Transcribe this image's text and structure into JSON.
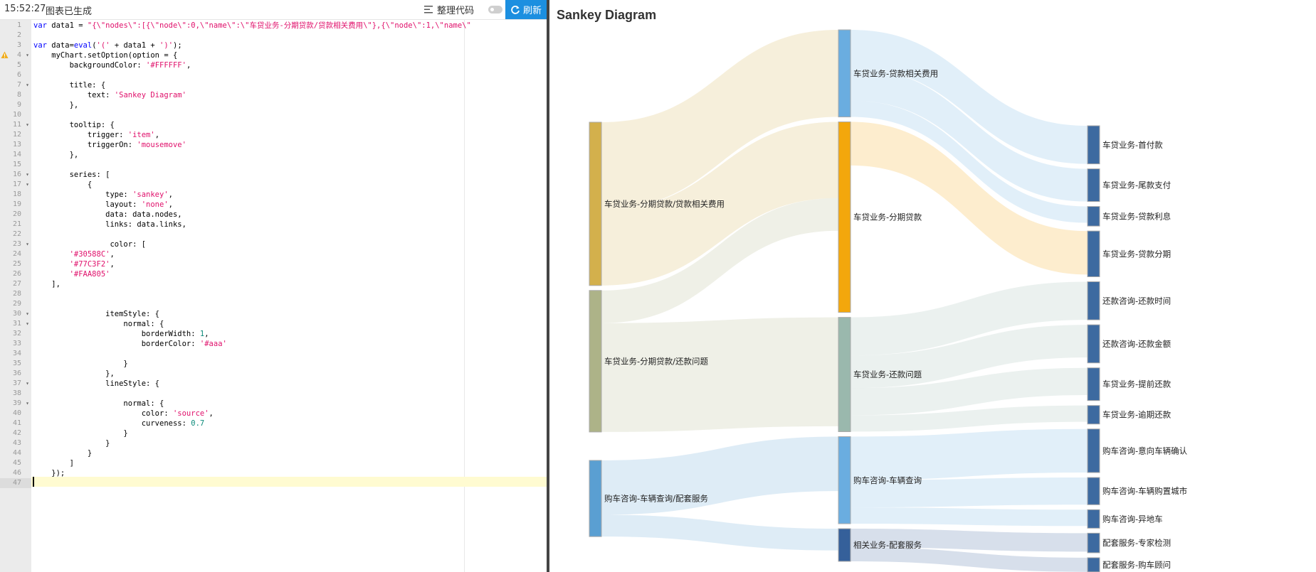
{
  "toolbar": {
    "time": "15:52:27",
    "status": "图表已生成",
    "tidy_label": "整理代码",
    "refresh_label": "刷新"
  },
  "editor": {
    "warning_line": 4,
    "active_line": 47,
    "lines": [
      {
        "n": 1,
        "fold": false,
        "code": "var data1 = \"{\\\"nodes\\\":[{\\\"node\\\":0,\\\"name\\\":\\\"车贷业务-分期贷款/贷款相关费用\\\"},{\\\"node\\\":1,\\\"name\\\""
      },
      {
        "n": 2,
        "fold": false,
        "code": ""
      },
      {
        "n": 3,
        "fold": false,
        "code": "var data=eval('(' + data1 + ')');"
      },
      {
        "n": 4,
        "fold": true,
        "code": "    myChart.setOption(option = {"
      },
      {
        "n": 5,
        "fold": false,
        "code": "        backgroundColor: '#FFFFFF',"
      },
      {
        "n": 6,
        "fold": false,
        "code": ""
      },
      {
        "n": 7,
        "fold": true,
        "code": "        title: {"
      },
      {
        "n": 8,
        "fold": false,
        "code": "            text: 'Sankey Diagram'"
      },
      {
        "n": 9,
        "fold": false,
        "code": "        },"
      },
      {
        "n": 10,
        "fold": false,
        "code": ""
      },
      {
        "n": 11,
        "fold": true,
        "code": "        tooltip: {"
      },
      {
        "n": 12,
        "fold": false,
        "code": "            trigger: 'item',"
      },
      {
        "n": 13,
        "fold": false,
        "code": "            triggerOn: 'mousemove'"
      },
      {
        "n": 14,
        "fold": false,
        "code": "        },"
      },
      {
        "n": 15,
        "fold": false,
        "code": ""
      },
      {
        "n": 16,
        "fold": true,
        "code": "        series: ["
      },
      {
        "n": 17,
        "fold": true,
        "code": "            {"
      },
      {
        "n": 18,
        "fold": false,
        "code": "                type: 'sankey',"
      },
      {
        "n": 19,
        "fold": false,
        "code": "                layout: 'none',"
      },
      {
        "n": 20,
        "fold": false,
        "code": "                data: data.nodes,"
      },
      {
        "n": 21,
        "fold": false,
        "code": "                links: data.links,"
      },
      {
        "n": 22,
        "fold": false,
        "code": ""
      },
      {
        "n": 23,
        "fold": true,
        "code": "                 color: ["
      },
      {
        "n": 24,
        "fold": false,
        "code": "        '#30588C',"
      },
      {
        "n": 25,
        "fold": false,
        "code": "        '#77C3F2',"
      },
      {
        "n": 26,
        "fold": false,
        "code": "        '#FAA805'"
      },
      {
        "n": 27,
        "fold": false,
        "code": "    ],"
      },
      {
        "n": 28,
        "fold": false,
        "code": ""
      },
      {
        "n": 29,
        "fold": false,
        "code": ""
      },
      {
        "n": 30,
        "fold": true,
        "code": "                itemStyle: {"
      },
      {
        "n": 31,
        "fold": true,
        "code": "                    normal: {"
      },
      {
        "n": 32,
        "fold": false,
        "code": "                        borderWidth: 1,"
      },
      {
        "n": 33,
        "fold": false,
        "code": "                        borderColor: '#aaa'"
      },
      {
        "n": 34,
        "fold": false,
        "code": ""
      },
      {
        "n": 35,
        "fold": false,
        "code": "                    }"
      },
      {
        "n": 36,
        "fold": false,
        "code": "                },"
      },
      {
        "n": 37,
        "fold": true,
        "code": "                lineStyle: {"
      },
      {
        "n": 38,
        "fold": false,
        "code": ""
      },
      {
        "n": 39,
        "fold": true,
        "code": "                    normal: {"
      },
      {
        "n": 40,
        "fold": false,
        "code": "                        color: 'source',"
      },
      {
        "n": 41,
        "fold": false,
        "code": "                        curveness: 0.7"
      },
      {
        "n": 42,
        "fold": false,
        "code": "                    }"
      },
      {
        "n": 43,
        "fold": false,
        "code": "                }"
      },
      {
        "n": 44,
        "fold": false,
        "code": "            }"
      },
      {
        "n": 45,
        "fold": false,
        "code": "        ]"
      },
      {
        "n": 46,
        "fold": false,
        "code": "    });"
      },
      {
        "n": 47,
        "fold": false,
        "code": ""
      }
    ]
  },
  "chart": {
    "title": "Sankey Diagram",
    "nodes": [
      {
        "name": "车贷业务-分期贷款/贷款相关费用",
        "value": 15,
        "color": "#d3b04c",
        "layer": 0
      },
      {
        "name": "车贷业务-分期贷款/还款问题",
        "value": 13,
        "color": "#adb388",
        "layer": 0
      },
      {
        "name": "购车咨询-车辆查询/配套服务",
        "value": 7,
        "color": "#5a9fd2",
        "layer": 0
      },
      {
        "name": "车贷业务-贷款相关费用",
        "value": 8,
        "color": "#6aade0",
        "layer": 1
      },
      {
        "name": "车贷业务-分期贷款",
        "value": 17.5,
        "color": "#f3a70c",
        "layer": 1
      },
      {
        "name": "车贷业务-还款问题",
        "value": 10.5,
        "color": "#9ab8ad",
        "layer": 1
      },
      {
        "name": "购车咨询-车辆查询",
        "value": 8,
        "color": "#6aade0",
        "layer": 1
      },
      {
        "name": "相关业务-配套服务",
        "value": 3,
        "color": "#35609a",
        "layer": 1
      },
      {
        "name": "车贷业务-首付款",
        "value": 3.5,
        "color": "#3d6aa0",
        "layer": 2
      },
      {
        "name": "车贷业务-尾款支付",
        "value": 3,
        "color": "#3d6aa0",
        "layer": 2
      },
      {
        "name": "车贷业务-贷款利息",
        "value": 1.8,
        "color": "#3d6aa0",
        "layer": 2
      },
      {
        "name": "车贷业务-贷款分期",
        "value": 4.2,
        "color": "#3d6aa0",
        "layer": 2
      },
      {
        "name": "还款咨询-还款时间",
        "value": 3.5,
        "color": "#3d6aa0",
        "layer": 2
      },
      {
        "name": "还款咨询-还款金额",
        "value": 3.5,
        "color": "#3d6aa0",
        "layer": 2
      },
      {
        "name": "车贷业务-提前还款",
        "value": 3,
        "color": "#3d6aa0",
        "layer": 2
      },
      {
        "name": "车贷业务-逾期还款",
        "value": 1.7,
        "color": "#3d6aa0",
        "layer": 2
      },
      {
        "name": "购车咨询-意向车辆确认",
        "value": 4,
        "color": "#3d6aa0",
        "layer": 2
      },
      {
        "name": "购车咨询-车辆购置城市",
        "value": 2.5,
        "color": "#3d6aa0",
        "layer": 2
      },
      {
        "name": "购车咨询-异地车",
        "value": 1.7,
        "color": "#3d6aa0",
        "layer": 2
      },
      {
        "name": "配套服务-专家检测",
        "value": 1.8,
        "color": "#3d6aa0",
        "layer": 2
      },
      {
        "name": "配套服务-购车顾问",
        "value": 1.3,
        "color": "#3d6aa0",
        "layer": 2
      }
    ],
    "links": [
      {
        "source": 0,
        "target": 3,
        "value": 8
      },
      {
        "source": 0,
        "target": 4,
        "value": 7
      },
      {
        "source": 1,
        "target": 4,
        "value": 3
      },
      {
        "source": 1,
        "target": 5,
        "value": 10
      },
      {
        "source": 2,
        "target": 6,
        "value": 5
      },
      {
        "source": 2,
        "target": 7,
        "value": 2
      },
      {
        "source": 3,
        "target": 8,
        "value": 3.5
      },
      {
        "source": 3,
        "target": 9,
        "value": 3
      },
      {
        "source": 3,
        "target": 10,
        "value": 1.5
      },
      {
        "source": 4,
        "target": 11,
        "value": 4
      },
      {
        "source": 5,
        "target": 12,
        "value": 3.5
      },
      {
        "source": 5,
        "target": 13,
        "value": 3
      },
      {
        "source": 5,
        "target": 14,
        "value": 2.5
      },
      {
        "source": 5,
        "target": 15,
        "value": 1.5
      },
      {
        "source": 6,
        "target": 16,
        "value": 4
      },
      {
        "source": 6,
        "target": 17,
        "value": 2.5
      },
      {
        "source": 6,
        "target": 18,
        "value": 1.5
      },
      {
        "source": 7,
        "target": 19,
        "value": 1.7
      },
      {
        "source": 7,
        "target": 20,
        "value": 1.3
      }
    ]
  }
}
